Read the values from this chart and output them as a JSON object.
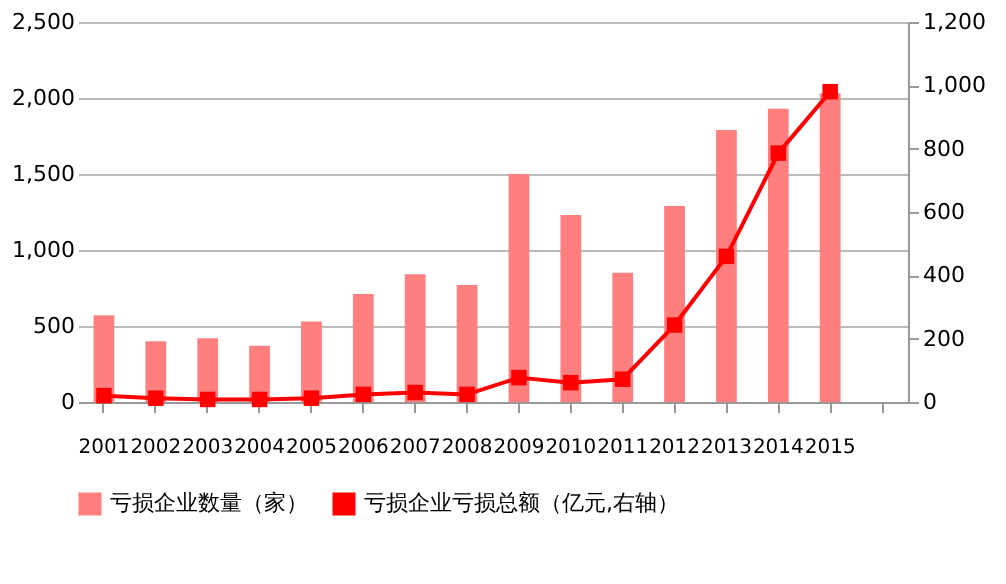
{
  "chart_data": {
    "type": "bar",
    "categories": [
      "2001",
      "2002",
      "2003",
      "2004",
      "2005",
      "2006",
      "2007",
      "2008",
      "2009",
      "2010",
      "2011",
      "2012",
      "2013",
      "2014",
      "2015",
      null
    ],
    "series": [
      {
        "name": "亏损企业数量（家）",
        "color": "#ff7f7f",
        "values": [
          570,
          400,
          420,
          370,
          530,
          710,
          840,
          770,
          1500,
          1230,
          850,
          1290,
          1790,
          1930,
          2030,
          null
        ]
      },
      {
        "name": "亏损企业亏损总额（亿元,右轴）",
        "type": "line",
        "axis": "y2",
        "color": "#ff0000",
        "marker": "square",
        "values": [
          20,
          12,
          8,
          8,
          12,
          24,
          30,
          24,
          77,
          61,
          72,
          243,
          460,
          786,
          980,
          null
        ]
      }
    ],
    "ylim": [
      0,
      2500
    ],
    "yticks": [
      0,
      {
        "value": 500,
        "label": "500"
      },
      {
        "value": 1000,
        "label": "1,000"
      },
      {
        "value": 1500,
        "label": "1,500"
      },
      {
        "value": 2000,
        "label": "2,000"
      },
      {
        "value": 2500,
        "label": "2,500"
      }
    ],
    "y2lim": [
      0,
      1200
    ],
    "y2ticks": [
      0,
      200,
      400,
      600,
      800,
      {
        "value": 1000,
        "label": "1,000"
      },
      {
        "value": 1200,
        "label": "1,200"
      }
    ],
    "grid": "y",
    "legend": "bottom"
  }
}
